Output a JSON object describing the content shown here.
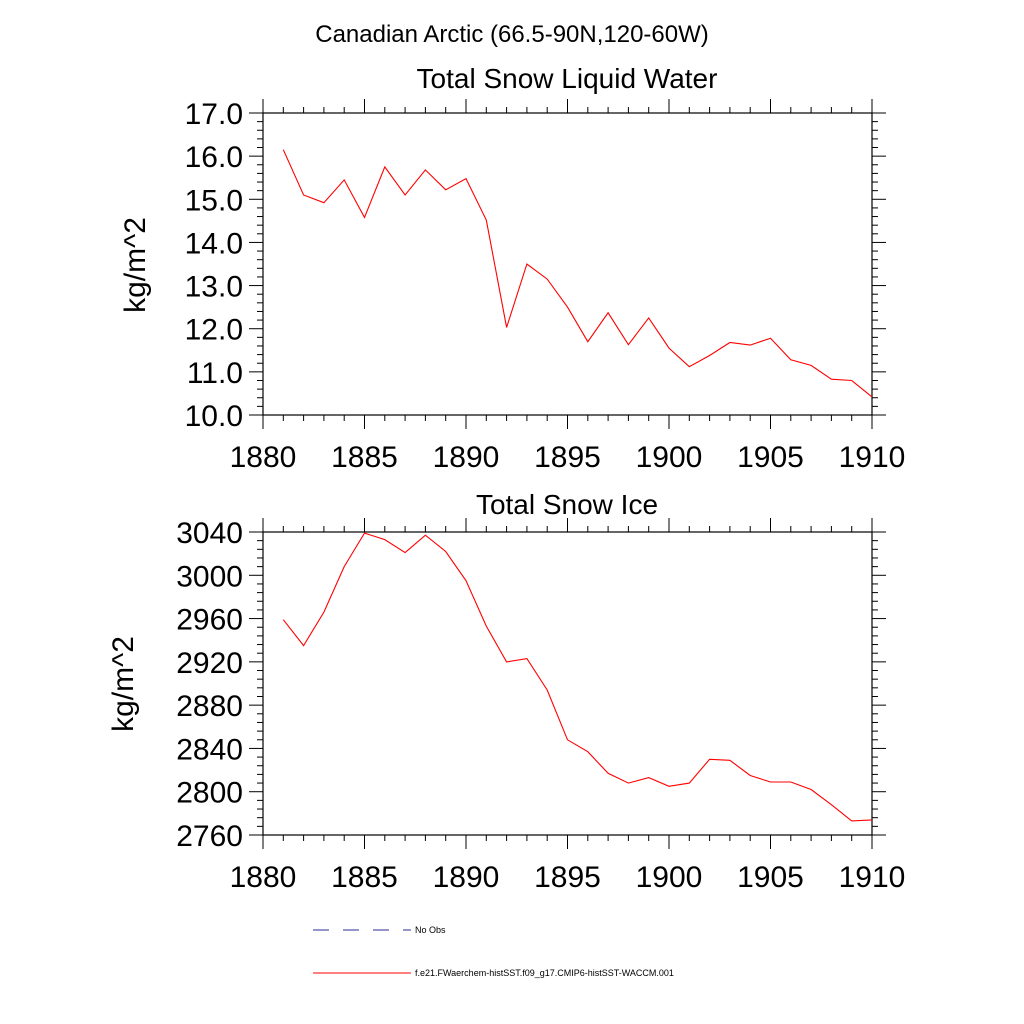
{
  "suptitle": "Canadian Arctic (66.5-90N,120-60W)",
  "line_color": "#ff0000",
  "obs_color": "#2b2b8f",
  "chart_data": [
    {
      "type": "line",
      "title": "Total Snow Liquid Water",
      "ylabel": "kg/m^2",
      "xlim": [
        1880,
        1910
      ],
      "ylim": [
        10.0,
        17.0
      ],
      "x_ticks": [
        "1880",
        "1885",
        "1890",
        "1895",
        "1900",
        "1905",
        "1910"
      ],
      "y_ticks": [
        "10.0",
        "11.0",
        "12.0",
        "13.0",
        "14.0",
        "15.0",
        "16.0",
        "17.0"
      ],
      "x": [
        1881,
        1882,
        1883,
        1884,
        1885,
        1886,
        1887,
        1888,
        1889,
        1890,
        1891,
        1892,
        1893,
        1894,
        1895,
        1896,
        1897,
        1898,
        1899,
        1900,
        1901,
        1902,
        1903,
        1904,
        1905,
        1906,
        1907,
        1908,
        1909,
        1910
      ],
      "series": [
        {
          "name": "f.e21.FWaerchem-histSST.f09_g17.CMIP6-histSST-WACCM.001",
          "values": [
            16.15,
            15.1,
            14.92,
            15.45,
            14.58,
            15.75,
            15.1,
            15.68,
            15.22,
            15.48,
            14.52,
            12.03,
            13.5,
            13.15,
            12.5,
            11.7,
            12.37,
            11.63,
            12.25,
            11.55,
            11.12,
            11.38,
            11.68,
            11.62,
            11.78,
            11.28,
            11.15,
            10.83,
            10.8,
            10.42
          ]
        }
      ]
    },
    {
      "type": "line",
      "title": "Total Snow Ice",
      "ylabel": "kg/m^2",
      "xlim": [
        1880,
        1910
      ],
      "ylim": [
        2760,
        3040
      ],
      "x_ticks": [
        "1880",
        "1885",
        "1890",
        "1895",
        "1900",
        "1905",
        "1910"
      ],
      "y_ticks": [
        "2760",
        "2800",
        "2840",
        "2880",
        "2920",
        "2960",
        "3000",
        "3040"
      ],
      "x": [
        1881,
        1882,
        1883,
        1884,
        1885,
        1886,
        1887,
        1888,
        1889,
        1890,
        1891,
        1892,
        1893,
        1894,
        1895,
        1896,
        1897,
        1898,
        1899,
        1900,
        1901,
        1902,
        1903,
        1904,
        1905,
        1906,
        1907,
        1908,
        1909,
        1910
      ],
      "series": [
        {
          "name": "f.e21.FWaerchem-histSST.f09_g17.CMIP6-histSST-WACCM.001",
          "values": [
            2959,
            2935,
            2966,
            3008,
            3039,
            3033,
            3021,
            3037,
            3022,
            2995,
            2953,
            2920,
            2923,
            2894,
            2848,
            2837,
            2817,
            2808,
            2813,
            2805,
            2808,
            2830,
            2829,
            2815,
            2809,
            2809,
            2802,
            2788,
            2773,
            2774
          ]
        }
      ]
    }
  ],
  "legend": [
    {
      "label": "No Obs",
      "style": "dashed"
    },
    {
      "label": "f.e21.FWaerchem-histSST.f09_g17.CMIP6-histSST-WACCM.001",
      "style": "solid"
    }
  ]
}
